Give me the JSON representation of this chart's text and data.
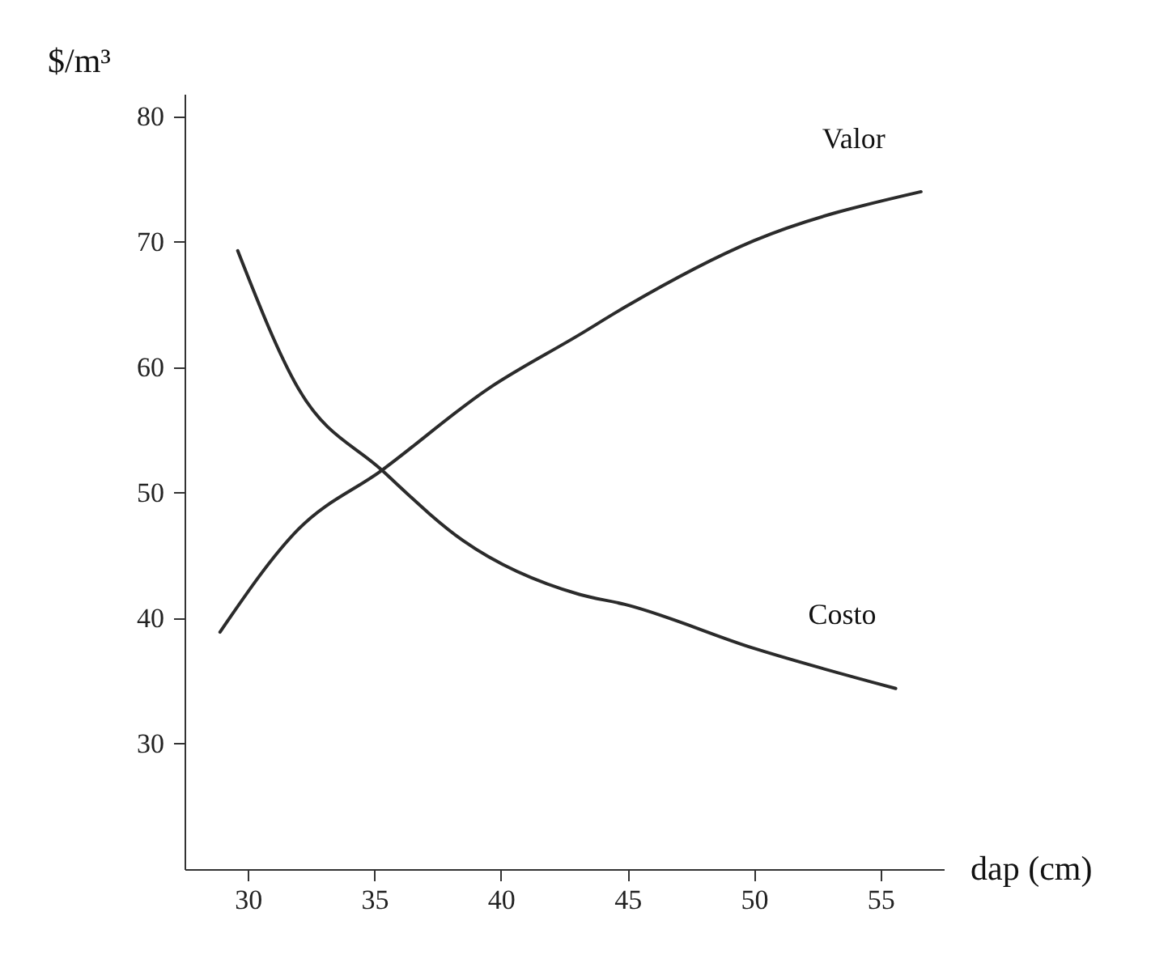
{
  "chart_data": {
    "type": "line",
    "xlabel": "dap (cm)",
    "ylabel": "$/m³",
    "xlim": [
      27.5,
      57.5
    ],
    "xticks": [
      30,
      35,
      40,
      45,
      50,
      55
    ],
    "ylim": [
      20,
      81.8
    ],
    "yticks": [
      30,
      40,
      50,
      60,
      70,
      80
    ],
    "series": [
      {
        "name": "Valor",
        "color": "#2b2b2b",
        "x": [
          28.9,
          32.0,
          35.3,
          39.5,
          43.1,
          44.9,
          50.0,
          56.6
        ],
        "values": [
          38.9,
          47.1,
          51.8,
          58.3,
          62.6,
          64.8,
          70.1,
          74.0
        ]
      },
      {
        "name": "Costo",
        "color": "#2b2b2b",
        "x": [
          29.6,
          32.0,
          35.3,
          38.5,
          43.1,
          44.9,
          50.0,
          55.6
        ],
        "values": [
          69.3,
          58.3,
          51.8,
          46.2,
          41.9,
          41.1,
          37.6,
          34.4
        ]
      }
    ]
  }
}
